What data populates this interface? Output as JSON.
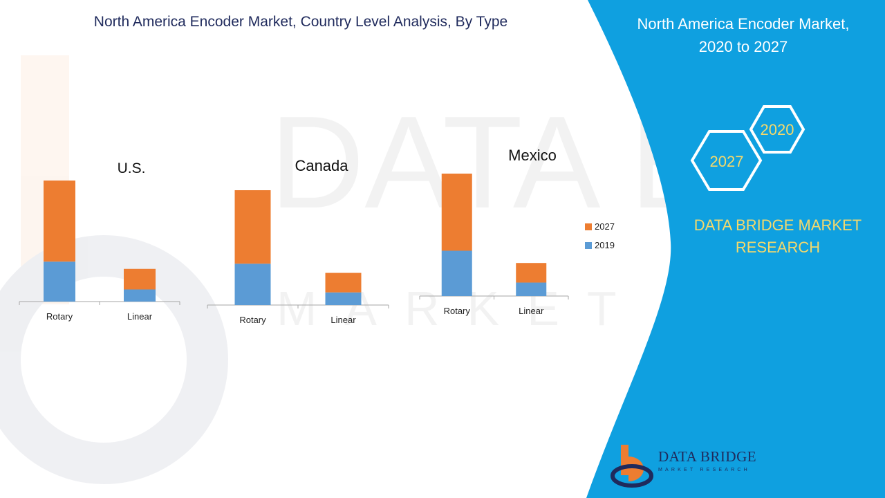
{
  "title": "North America Encoder Market, Country Level Analysis, By Type",
  "side_panel": {
    "title_line1": "North America Encoder Market,",
    "title_line2": "2020 to 2027",
    "hex_labels": [
      "2020",
      "2027"
    ],
    "brand_line1": "DATA BRIDGE MARKET",
    "brand_line2": "RESEARCH"
  },
  "logo": {
    "name": "DATA BRIDGE",
    "sub": "MARKET RESEARCH"
  },
  "watermark": {
    "text": "DATA BRIDGE",
    "sub": "MARKET RESEARCH"
  },
  "colors": {
    "series_2019": "#5b9bd5",
    "series_2027": "#ed7d31",
    "panel": "#0fa0e0",
    "accent": "#f5d96b",
    "navy": "#1f2a5c"
  },
  "legend": {
    "position": "right",
    "entries": [
      "2027",
      "2019"
    ]
  },
  "chart_data": [
    {
      "type": "bar",
      "stacked": true,
      "title": "U.S.",
      "categories": [
        "Rotary",
        "Linear"
      ],
      "series": [
        {
          "name": "2019",
          "values": [
            33,
            10
          ]
        },
        {
          "name": "2027",
          "values": [
            67,
            17
          ]
        }
      ],
      "ylim": [
        0,
        100
      ],
      "grid": false
    },
    {
      "type": "bar",
      "stacked": true,
      "title": "Canada",
      "categories": [
        "Rotary",
        "Linear"
      ],
      "series": [
        {
          "name": "2019",
          "values": [
            36,
            11
          ]
        },
        {
          "name": "2027",
          "values": [
            64,
            17
          ]
        }
      ],
      "ylim": [
        0,
        100
      ],
      "grid": false
    },
    {
      "type": "bar",
      "stacked": true,
      "title": "Mexico",
      "categories": [
        "Rotary",
        "Linear"
      ],
      "series": [
        {
          "name": "2019",
          "values": [
            37,
            11
          ]
        },
        {
          "name": "2027",
          "values": [
            63,
            16
          ]
        }
      ],
      "ylim": [
        0,
        100
      ],
      "grid": false
    }
  ]
}
